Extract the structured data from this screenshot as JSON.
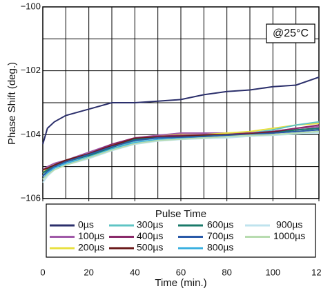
{
  "chart_data": {
    "type": "line",
    "ylabel": "Phase Shift (deg.)",
    "xlabel": "Time (min.)",
    "annotation": "@25°C",
    "legend_title": "Pulse Time",
    "x": [
      0,
      2,
      5,
      10,
      20,
      30,
      40,
      50,
      60,
      70,
      80,
      90,
      100,
      110,
      120
    ],
    "xlim": [
      0,
      120
    ],
    "xticks": [
      0,
      20,
      40,
      60,
      80,
      100,
      120
    ],
    "ylim": [
      -106,
      -100
    ],
    "yticks": [
      {
        "value": -106,
        "label": "−106"
      },
      {
        "value": -104,
        "label": "−104"
      },
      {
        "value": -102,
        "label": "−102"
      },
      {
        "value": -100,
        "label": "−100"
      }
    ],
    "xgrid": [
      0,
      10,
      20,
      30,
      40,
      50,
      60,
      70,
      80,
      90,
      100,
      110,
      120
    ],
    "ygrid": [
      -106,
      -105,
      -104,
      -103,
      -102,
      -101,
      -100
    ],
    "series": [
      {
        "name": "0µs",
        "color": "#2b2f6b",
        "values": [
          -104.3,
          -103.8,
          -103.6,
          -103.4,
          -103.2,
          -103.0,
          -103.0,
          -102.95,
          -102.9,
          -102.75,
          -102.65,
          -102.6,
          -102.5,
          -102.45,
          -102.2
        ]
      },
      {
        "name": "100µs",
        "color": "#a05aa8",
        "values": [
          -105.1,
          -105.0,
          -104.9,
          -104.8,
          -104.55,
          -104.3,
          -104.1,
          -104.02,
          -103.95,
          -103.95,
          -103.95,
          -103.95,
          -103.9,
          -103.8,
          -103.75
        ]
      },
      {
        "name": "200µs",
        "color": "#e8e040",
        "values": [
          -105.2,
          -105.05,
          -104.95,
          -104.8,
          -104.6,
          -104.35,
          -104.1,
          -104.05,
          -104.0,
          -104.0,
          -103.95,
          -103.9,
          -103.8,
          -103.7,
          -103.65
        ]
      },
      {
        "name": "300µs",
        "color": "#5fc4c4",
        "values": [
          -105.3,
          -105.1,
          -105.0,
          -104.85,
          -104.65,
          -104.45,
          -104.2,
          -104.1,
          -104.08,
          -104.05,
          -104.0,
          -103.95,
          -103.85,
          -103.7,
          -103.6
        ]
      },
      {
        "name": "400µs",
        "color": "#8a2a6a",
        "values": [
          -105.2,
          -105.1,
          -104.95,
          -104.8,
          -104.6,
          -104.3,
          -104.1,
          -104.05,
          -104.02,
          -104.0,
          -104.0,
          -103.95,
          -103.9,
          -103.8,
          -103.7
        ]
      },
      {
        "name": "500µs",
        "color": "#6b1a1a",
        "values": [
          -105.1,
          -105.05,
          -104.95,
          -104.8,
          -104.6,
          -104.35,
          -104.12,
          -104.08,
          -104.05,
          -104.02,
          -104.0,
          -103.98,
          -103.92,
          -103.85,
          -103.8
        ]
      },
      {
        "name": "600µs",
        "color": "#1a7a6a",
        "values": [
          -105.2,
          -105.1,
          -105.0,
          -104.85,
          -104.65,
          -104.4,
          -104.15,
          -104.1,
          -104.08,
          -104.05,
          -104.02,
          -104.0,
          -103.95,
          -103.85,
          -103.8
        ]
      },
      {
        "name": "700µs",
        "color": "#2a5aa8",
        "values": [
          -105.3,
          -105.15,
          -105.0,
          -104.85,
          -104.62,
          -104.38,
          -104.18,
          -104.1,
          -104.08,
          -104.06,
          -104.02,
          -104.0,
          -103.95,
          -103.9,
          -103.85
        ]
      },
      {
        "name": "800µs",
        "color": "#3ab0e0",
        "values": [
          -105.4,
          -105.2,
          -105.05,
          -104.9,
          -104.7,
          -104.45,
          -104.25,
          -104.15,
          -104.12,
          -104.1,
          -104.08,
          -104.05,
          -104.0,
          -103.95,
          -103.9
        ]
      },
      {
        "name": "900µs",
        "color": "#bfe3ee",
        "values": [
          -105.5,
          -105.3,
          -105.1,
          -104.95,
          -104.75,
          -104.5,
          -104.3,
          -104.2,
          -104.15,
          -104.12,
          -104.1,
          -104.05,
          -104.02,
          -103.98,
          -103.95
        ]
      },
      {
        "name": "1000µs",
        "color": "#b8dcb0",
        "values": [
          -105.4,
          -105.25,
          -105.1,
          -104.95,
          -104.72,
          -104.48,
          -104.28,
          -104.18,
          -104.14,
          -104.1,
          -104.06,
          -104.02,
          -104.0,
          -103.95,
          -103.9
        ]
      }
    ]
  }
}
